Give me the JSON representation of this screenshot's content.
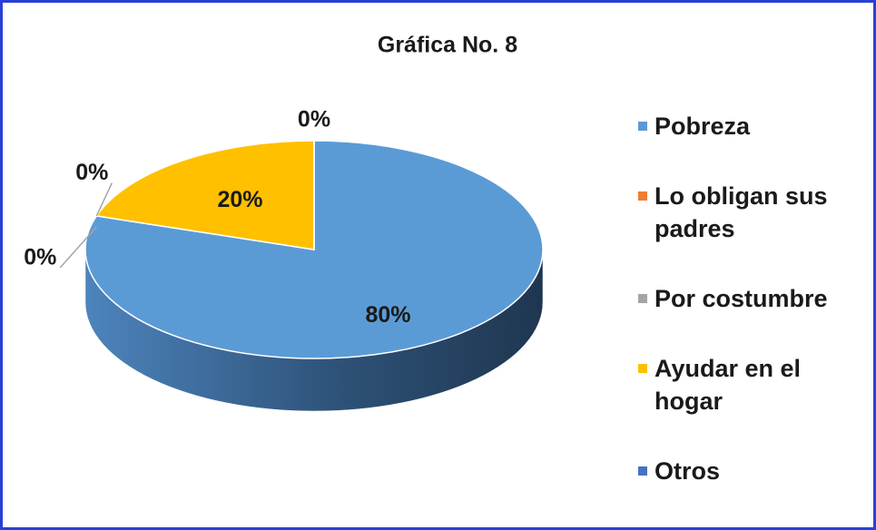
{
  "chart_data": {
    "type": "pie",
    "title": "Gráfica No. 8",
    "categories": [
      "Pobreza",
      "Lo obligan sus padres",
      "Por costumbre",
      "Ayudar en el hogar",
      "Otros"
    ],
    "values": [
      80,
      0,
      0,
      20,
      0
    ],
    "value_labels": [
      "80%",
      "0%",
      "0%",
      "20%",
      "0%"
    ],
    "colors": [
      "#5b9bd5",
      "#ed7d31",
      "#a5a5a5",
      "#ffc000",
      "#4472c4"
    ],
    "legend": "right"
  }
}
